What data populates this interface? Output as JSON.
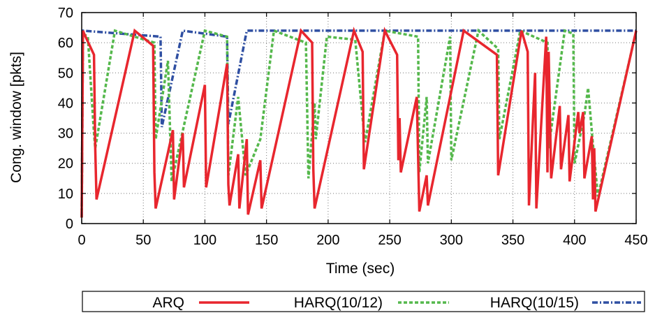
{
  "chart_data": {
    "type": "line",
    "title": "",
    "xlabel": "Time (sec)",
    "ylabel": "Cong. window [pkts]",
    "xlim": [
      0,
      450
    ],
    "ylim": [
      0,
      70
    ],
    "xticks": [
      0,
      50,
      100,
      150,
      200,
      250,
      300,
      350,
      400,
      450
    ],
    "yticks": [
      0,
      10,
      20,
      30,
      40,
      50,
      60,
      70
    ],
    "grid": true,
    "legend_position": "bottom",
    "series": [
      {
        "name": "ARQ",
        "color": "#e8262e",
        "style": "solid",
        "points": [
          [
            0,
            2
          ],
          [
            1,
            64
          ],
          [
            2,
            63
          ],
          [
            10,
            56
          ],
          [
            11,
            25
          ],
          [
            12,
            8
          ],
          [
            43,
            64
          ],
          [
            58,
            59
          ],
          [
            59,
            17
          ],
          [
            60,
            5
          ],
          [
            74,
            31
          ],
          [
            75,
            8
          ],
          [
            82,
            30
          ],
          [
            83,
            12
          ],
          [
            100,
            46
          ],
          [
            101,
            12
          ],
          [
            118,
            53
          ],
          [
            119,
            13
          ],
          [
            120,
            6
          ],
          [
            127,
            23
          ],
          [
            128,
            5
          ],
          [
            134,
            28
          ],
          [
            135,
            3
          ],
          [
            145,
            21
          ],
          [
            146,
            5
          ],
          [
            178,
            64
          ],
          [
            187,
            60
          ],
          [
            188,
            18
          ],
          [
            189,
            5
          ],
          [
            221,
            64
          ],
          [
            228,
            57
          ],
          [
            229,
            18
          ],
          [
            246,
            64
          ],
          [
            256,
            56
          ],
          [
            257,
            21
          ],
          [
            258,
            35
          ],
          [
            259,
            17
          ],
          [
            272,
            42
          ],
          [
            274,
            4
          ],
          [
            280,
            16
          ],
          [
            281,
            6
          ],
          [
            310,
            64
          ],
          [
            337,
            56
          ],
          [
            338,
            16
          ],
          [
            357,
            64
          ],
          [
            362,
            57
          ],
          [
            363,
            6
          ],
          [
            368,
            50
          ],
          [
            369,
            5
          ],
          [
            377,
            62
          ],
          [
            378,
            17
          ],
          [
            379,
            57
          ],
          [
            381,
            15
          ],
          [
            388,
            39
          ],
          [
            389,
            18
          ],
          [
            395,
            36
          ],
          [
            396,
            14
          ],
          [
            403,
            37
          ],
          [
            404,
            30
          ],
          [
            407,
            37
          ],
          [
            408,
            15
          ],
          [
            414,
            29
          ],
          [
            415,
            8
          ],
          [
            416,
            25
          ],
          [
            417,
            4
          ],
          [
            450,
            64
          ]
        ]
      },
      {
        "name": "HARQ(10/12)",
        "color": "#55b84c",
        "style": "dashed",
        "points": [
          [
            0,
            2
          ],
          [
            1,
            63
          ],
          [
            5,
            62
          ],
          [
            10,
            30
          ],
          [
            11,
            25
          ],
          [
            27,
            64
          ],
          [
            59,
            60
          ],
          [
            60,
            28
          ],
          [
            70,
            54
          ],
          [
            73,
            14
          ],
          [
            100,
            64
          ],
          [
            118,
            62
          ],
          [
            119,
            16
          ],
          [
            127,
            42
          ],
          [
            133,
            16
          ],
          [
            145,
            28
          ],
          [
            156,
            64
          ],
          [
            182,
            60
          ],
          [
            184,
            15
          ],
          [
            189,
            40
          ],
          [
            190,
            28
          ],
          [
            199,
            62
          ],
          [
            222,
            61
          ],
          [
            228,
            35
          ],
          [
            230,
            27
          ],
          [
            246,
            64
          ],
          [
            273,
            62
          ],
          [
            274,
            17
          ],
          [
            280,
            42
          ],
          [
            281,
            20
          ],
          [
            299,
            62
          ],
          [
            300,
            21
          ],
          [
            322,
            64
          ],
          [
            338,
            58
          ],
          [
            339,
            28
          ],
          [
            356,
            64
          ],
          [
            378,
            60
          ],
          [
            379,
            25
          ],
          [
            392,
            64
          ],
          [
            399,
            63
          ],
          [
            400,
            20
          ],
          [
            408,
            36
          ],
          [
            411,
            45
          ],
          [
            415,
            26
          ],
          [
            419,
            9
          ],
          [
            449,
            62
          ]
        ]
      },
      {
        "name": "HARQ(10/15)",
        "color": "#2f4fa2",
        "style": "dash-dot",
        "points": [
          [
            0,
            2
          ],
          [
            1,
            64
          ],
          [
            64,
            62
          ],
          [
            65,
            32
          ],
          [
            82,
            64
          ],
          [
            118,
            62
          ],
          [
            119,
            33
          ],
          [
            134,
            64
          ],
          [
            450,
            64
          ]
        ]
      }
    ]
  }
}
